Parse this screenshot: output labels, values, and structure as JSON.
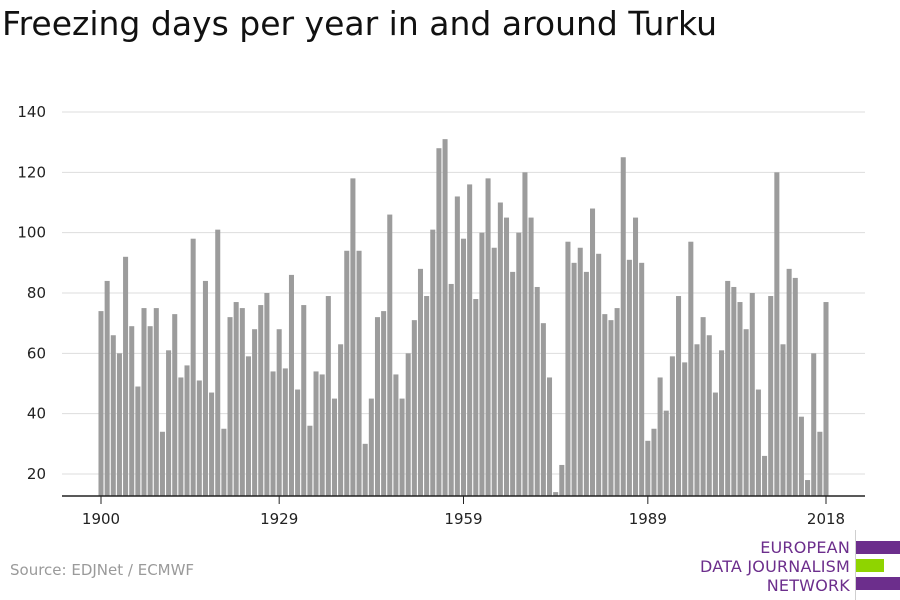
{
  "title": "Freezing days per year in and around Turku",
  "source": "Source: EDJNet / ECMWF",
  "logo": {
    "lines": [
      "EUROPEAN",
      "DATA JOURNALISM",
      "NETWORK"
    ],
    "colors": {
      "text": "#6c2e8c",
      "purple": "#6c2e8c",
      "green": "#8fd400"
    }
  },
  "chart_data": {
    "type": "bar",
    "title": "Freezing days per year in and around Turku",
    "xlabel": "",
    "ylabel": "",
    "x_ticks": [
      1900,
      1929,
      1959,
      1989,
      2018
    ],
    "y_ticks": [
      20,
      40,
      60,
      80,
      100,
      120,
      140
    ],
    "ylim": [
      12,
      140
    ],
    "grid": true,
    "bar_color": "#9c9c9c",
    "categories": [
      1900,
      1901,
      1902,
      1903,
      1904,
      1905,
      1906,
      1907,
      1908,
      1909,
      1910,
      1911,
      1912,
      1913,
      1914,
      1915,
      1916,
      1917,
      1918,
      1919,
      1920,
      1921,
      1922,
      1923,
      1924,
      1925,
      1926,
      1927,
      1928,
      1929,
      1930,
      1931,
      1932,
      1933,
      1934,
      1935,
      1936,
      1937,
      1938,
      1939,
      1940,
      1941,
      1942,
      1943,
      1944,
      1945,
      1946,
      1947,
      1948,
      1949,
      1950,
      1951,
      1952,
      1953,
      1954,
      1955,
      1956,
      1957,
      1958,
      1959,
      1960,
      1961,
      1962,
      1963,
      1964,
      1965,
      1966,
      1967,
      1968,
      1969,
      1970,
      1971,
      1972,
      1973,
      1974,
      1975,
      1976,
      1977,
      1978,
      1979,
      1980,
      1981,
      1982,
      1983,
      1984,
      1985,
      1986,
      1987,
      1988,
      1989,
      1990,
      1991,
      1992,
      1993,
      1994,
      1995,
      1996,
      1997,
      1998,
      1999,
      2000,
      2001,
      2002,
      2003,
      2004,
      2005,
      2006,
      2007,
      2008,
      2009,
      2010,
      2011,
      2012,
      2013,
      2014,
      2015,
      2016,
      2017,
      2018
    ],
    "values": [
      74,
      84,
      66,
      60,
      92,
      69,
      49,
      75,
      69,
      75,
      34,
      61,
      73,
      52,
      56,
      98,
      51,
      84,
      47,
      101,
      35,
      72,
      77,
      75,
      59,
      68,
      76,
      80,
      54,
      68,
      55,
      86,
      48,
      76,
      36,
      54,
      53,
      79,
      45,
      63,
      94,
      118,
      94,
      30,
      45,
      72,
      74,
      106,
      53,
      45,
      60,
      71,
      88,
      79,
      101,
      128,
      131,
      83,
      112,
      98,
      116,
      78,
      100,
      118,
      95,
      110,
      105,
      87,
      100,
      120,
      105,
      82,
      70,
      52,
      14,
      23,
      97,
      90,
      95,
      87,
      108,
      93,
      73,
      71,
      75,
      125,
      91,
      105,
      90,
      31,
      35,
      52,
      41,
      59,
      79,
      57,
      97,
      63,
      72,
      66,
      47,
      61,
      84,
      82,
      77,
      68,
      80,
      48,
      26,
      79,
      120,
      63,
      88,
      85,
      39,
      18,
      60,
      34,
      77
    ]
  }
}
